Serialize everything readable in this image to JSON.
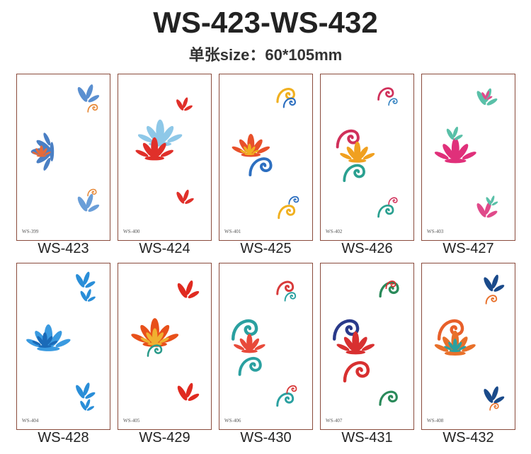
{
  "header": {
    "title": "WS-423-WS-432",
    "subtitle": "单张size：60*105mm"
  },
  "items": [
    {
      "label": "WS-423",
      "code": "WS-399"
    },
    {
      "label": "WS-424",
      "code": "WS-400"
    },
    {
      "label": "WS-425",
      "code": "WS-401"
    },
    {
      "label": "WS-426",
      "code": "WS-402"
    },
    {
      "label": "WS-427",
      "code": "WS-403"
    },
    {
      "label": "WS-428",
      "code": "WS-404"
    },
    {
      "label": "WS-429",
      "code": "WS-405"
    },
    {
      "label": "WS-430",
      "code": "WS-406"
    },
    {
      "label": "WS-431",
      "code": "WS-407"
    },
    {
      "label": "WS-432",
      "code": "WS-408"
    }
  ]
}
